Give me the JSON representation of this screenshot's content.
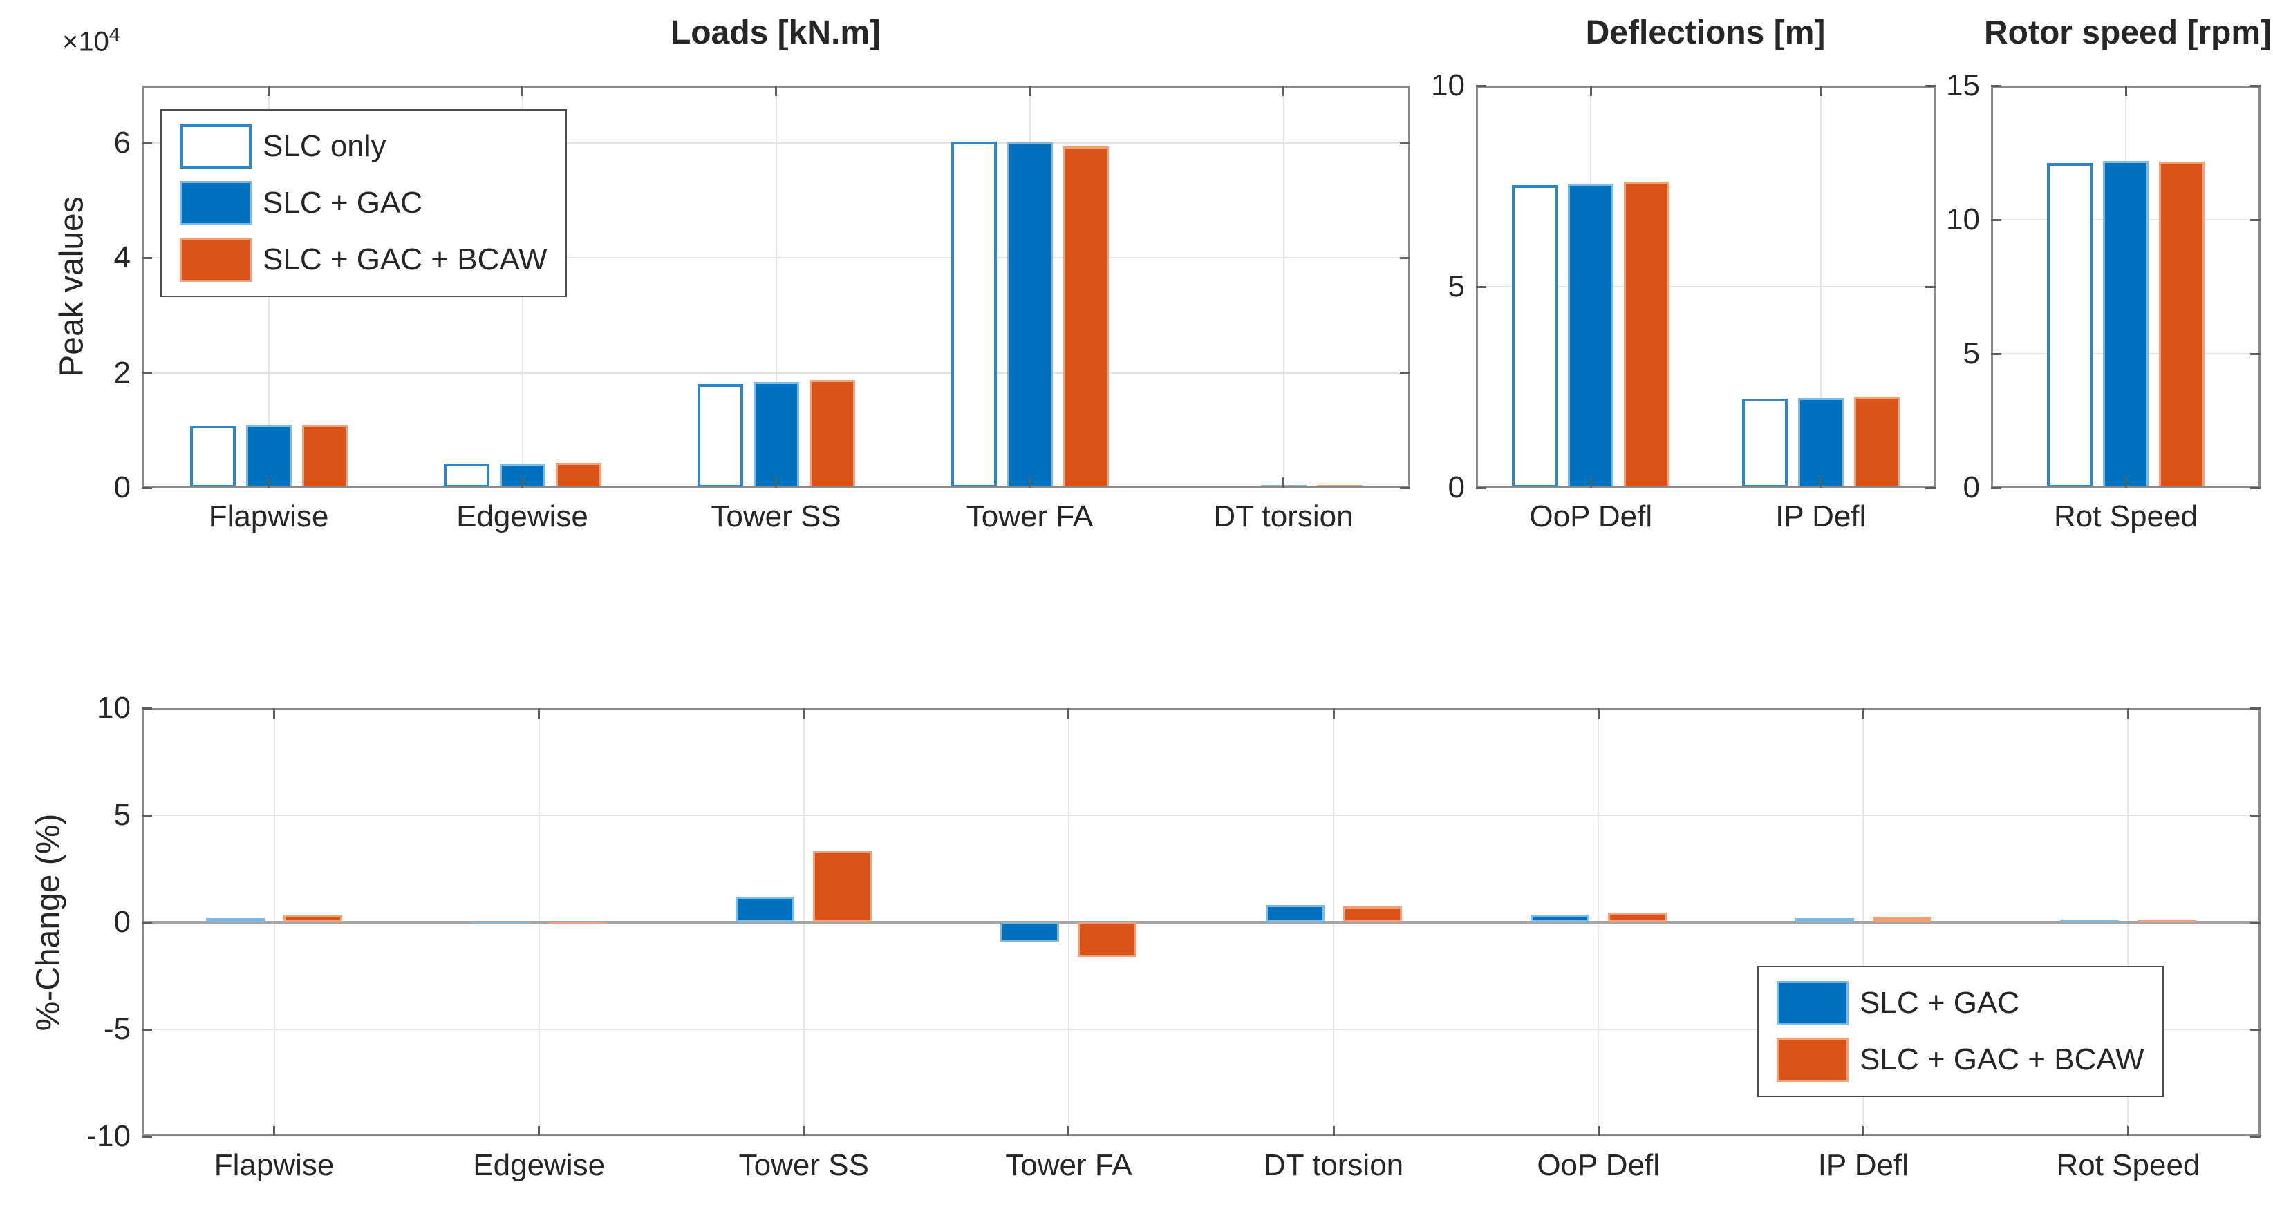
{
  "figure": {
    "loads_multiplier": {
      "base": "×10",
      "exp": "4"
    }
  },
  "colors": {
    "slc": {
      "fill": "#ffffff",
      "edge": "#2e86c8"
    },
    "gac": {
      "fill": "#0072bd",
      "edge": "#7fb9e2"
    },
    "bcaw": {
      "fill": "#d95319",
      "edge": "#efa17a"
    }
  },
  "legend_top": {
    "items": [
      {
        "label": "SLC only",
        "color_key": "slc"
      },
      {
        "label": "SLC + GAC",
        "color_key": "gac"
      },
      {
        "label": "SLC + GAC + BCAW",
        "color_key": "bcaw"
      }
    ]
  },
  "legend_bottom": {
    "items": [
      {
        "label": "SLC + GAC",
        "color_key": "gac"
      },
      {
        "label": "SLC + GAC + BCAW",
        "color_key": "bcaw"
      }
    ]
  },
  "chart_data": [
    {
      "id": "loads",
      "type": "bar",
      "title": "Loads [kN.m]",
      "ylabel": "Peak values",
      "y_multiplier": "×10^4",
      "categories": [
        "Flapwise",
        "Edgewise",
        "Tower SS",
        "Tower FA",
        "DT torsion"
      ],
      "series": [
        {
          "name": "SLC only",
          "color_key": "slc",
          "values": [
            1.08,
            0.42,
            1.81,
            6.03,
            0.04
          ]
        },
        {
          "name": "SLC + GAC",
          "color_key": "gac",
          "values": [
            1.09,
            0.42,
            1.84,
            6.01,
            0.05
          ]
        },
        {
          "name": "SLC + GAC + BCAW",
          "color_key": "bcaw",
          "values": [
            1.1,
            0.43,
            1.88,
            5.94,
            0.05
          ]
        }
      ],
      "ylim": [
        0,
        7
      ],
      "yticks": [
        0,
        2,
        4,
        6
      ],
      "grid": true,
      "legend_position": "top-left"
    },
    {
      "id": "deflections",
      "type": "bar",
      "title": "Deflections [m]",
      "ylabel": "",
      "categories": [
        "OoP Defl",
        "IP Defl"
      ],
      "series": [
        {
          "name": "SLC only",
          "color_key": "slc",
          "values": [
            7.52,
            2.22
          ]
        },
        {
          "name": "SLC + GAC",
          "color_key": "gac",
          "values": [
            7.56,
            2.24
          ]
        },
        {
          "name": "SLC + GAC + BCAW",
          "color_key": "bcaw",
          "values": [
            7.61,
            2.26
          ]
        }
      ],
      "ylim": [
        0,
        10
      ],
      "yticks": [
        0,
        5,
        10
      ],
      "grid": true,
      "legend_position": "none"
    },
    {
      "id": "rotor_speed",
      "type": "bar",
      "title": "Rotor speed [rpm]",
      "ylabel": "",
      "categories": [
        "Rot Speed"
      ],
      "series": [
        {
          "name": "SLC only",
          "color_key": "slc",
          "values": [
            12.12
          ]
        },
        {
          "name": "SLC + GAC",
          "color_key": "gac",
          "values": [
            12.18
          ]
        },
        {
          "name": "SLC + GAC + BCAW",
          "color_key": "bcaw",
          "values": [
            12.16
          ]
        }
      ],
      "ylim": [
        0,
        15
      ],
      "yticks": [
        0,
        5,
        10,
        15
      ],
      "grid": true,
      "legend_position": "none"
    },
    {
      "id": "pct_change",
      "type": "bar",
      "title": "",
      "ylabel": "%-Change (%)",
      "categories": [
        "Flapwise",
        "Edgewise",
        "Tower SS",
        "Tower FA",
        "DT torsion",
        "OoP Defl",
        "IP Defl",
        "Rot Speed"
      ],
      "series": [
        {
          "name": "SLC + GAC",
          "color_key": "gac",
          "values": [
            0.2,
            -0.08,
            1.2,
            -0.9,
            0.82,
            0.35,
            0.18,
            0.09
          ]
        },
        {
          "name": "SLC + GAC + BCAW",
          "color_key": "bcaw",
          "values": [
            0.34,
            -0.07,
            3.33,
            -1.62,
            0.75,
            0.44,
            0.26,
            0.11
          ]
        }
      ],
      "ylim": [
        -10,
        10
      ],
      "yticks": [
        -10,
        -5,
        0,
        5,
        10
      ],
      "grid": true,
      "legend_position": "bottom-right"
    }
  ]
}
